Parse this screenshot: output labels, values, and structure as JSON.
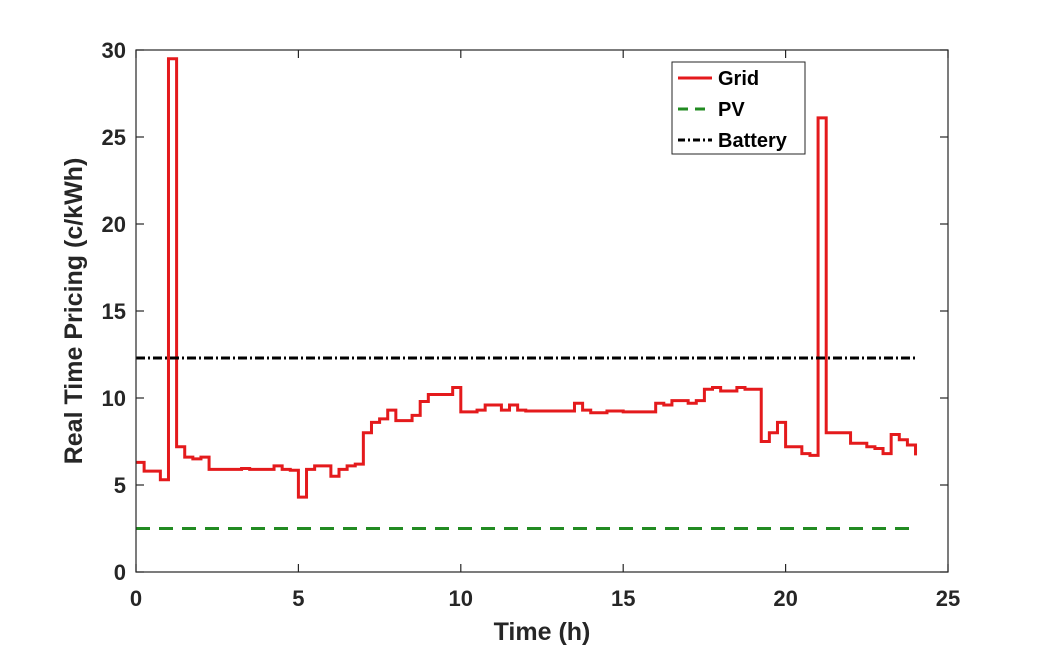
{
  "chart_data": {
    "type": "line",
    "title": "",
    "xlabel": "Time (h)",
    "ylabel": "Real Time Pricing (c/kWh)",
    "xlim": [
      0,
      25
    ],
    "ylim": [
      0,
      30
    ],
    "xticks": [
      0,
      5,
      10,
      15,
      20,
      25
    ],
    "yticks": [
      0,
      5,
      10,
      15,
      20,
      25,
      30
    ],
    "grid": false,
    "legend_position": "top-right",
    "series": [
      {
        "name": "Grid",
        "style": "solid-step",
        "color": "#e41a1c",
        "x": [
          0,
          0.25,
          0.75,
          1.0,
          1.25,
          1.5,
          1.75,
          2.0,
          2.25,
          2.5,
          2.75,
          3.0,
          3.25,
          3.5,
          3.75,
          4.0,
          4.25,
          4.5,
          4.75,
          5.0,
          5.25,
          5.5,
          6.0,
          6.25,
          6.5,
          6.75,
          7.0,
          7.25,
          7.5,
          7.75,
          8.0,
          8.5,
          8.75,
          9.0,
          9.25,
          9.5,
          9.75,
          10.0,
          10.25,
          10.5,
          10.75,
          11.0,
          11.25,
          11.5,
          11.75,
          12.0,
          12.5,
          13.0,
          13.5,
          13.75,
          14.0,
          14.5,
          15.0,
          15.5,
          16.0,
          16.25,
          16.5,
          16.75,
          17.0,
          17.25,
          17.5,
          17.75,
          18.0,
          18.5,
          18.75,
          19.0,
          19.25,
          19.5,
          19.75,
          20.0,
          20.25,
          20.5,
          20.75,
          21.0,
          21.25,
          21.5,
          22.0,
          22.5,
          22.75,
          23.0,
          23.25,
          23.5,
          23.75,
          24.0
        ],
        "y": [
          6.3,
          5.8,
          5.3,
          29.5,
          7.2,
          6.6,
          6.5,
          6.6,
          5.9,
          5.9,
          5.9,
          5.9,
          5.95,
          5.9,
          5.9,
          5.9,
          6.1,
          5.9,
          5.85,
          4.3,
          5.9,
          6.1,
          5.5,
          5.9,
          6.1,
          6.2,
          8.0,
          8.6,
          8.8,
          9.3,
          8.7,
          9.0,
          9.8,
          10.2,
          10.2,
          10.2,
          10.6,
          9.2,
          9.2,
          9.3,
          9.6,
          9.6,
          9.3,
          9.6,
          9.3,
          9.25,
          9.25,
          9.25,
          9.7,
          9.3,
          9.15,
          9.25,
          9.2,
          9.2,
          9.7,
          9.6,
          9.85,
          9.85,
          9.7,
          9.85,
          10.5,
          10.6,
          10.4,
          10.6,
          10.5,
          10.5,
          7.5,
          8.0,
          8.6,
          7.2,
          7.2,
          6.8,
          6.7,
          26.1,
          8.0,
          8.0,
          7.4,
          7.2,
          7.1,
          6.8,
          7.9,
          7.6,
          7.3,
          6.7
        ]
      },
      {
        "name": "PV",
        "style": "dashed",
        "color": "#228b22",
        "x": [
          0,
          24
        ],
        "y": [
          2.5,
          2.5
        ]
      },
      {
        "name": "Battery",
        "style": "dash-dot",
        "color": "#000000",
        "x": [
          0,
          24
        ],
        "y": [
          12.3,
          12.3
        ]
      }
    ]
  }
}
